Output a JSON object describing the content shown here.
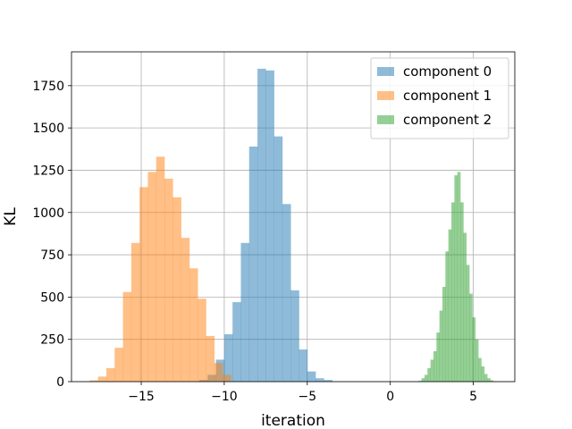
{
  "chart_data": {
    "type": "histogram",
    "xlabel": "iteration",
    "ylabel": "KL",
    "xlim": [
      -19.2,
      7.5
    ],
    "ylim": [
      0,
      1950
    ],
    "x_ticks": [
      -15,
      -10,
      -5,
      0,
      5
    ],
    "x_tick_labels": [
      "−15",
      "−10",
      "−5",
      "0",
      "5"
    ],
    "y_ticks": [
      0,
      250,
      500,
      750,
      1000,
      1250,
      1500,
      1750
    ],
    "y_tick_labels": [
      "0",
      "250",
      "500",
      "750",
      "1000",
      "1250",
      "1500",
      "1750"
    ],
    "grid": true,
    "legend_position": "top-right",
    "bar_alpha": 0.5,
    "series": [
      {
        "name": "component 0",
        "color": "#1f77b4",
        "bin_start": -11.5,
        "bin_width": 0.5,
        "counts": [
          10,
          40,
          130,
          280,
          470,
          820,
          1390,
          1850,
          1840,
          1450,
          1050,
          540,
          190,
          60,
          20,
          10
        ]
      },
      {
        "name": "component 1",
        "color": "#ff7f0e",
        "bin_start": -18.1,
        "bin_width": 0.5,
        "counts": [
          8,
          30,
          80,
          200,
          530,
          820,
          1150,
          1240,
          1330,
          1200,
          1090,
          850,
          670,
          490,
          270,
          110,
          40
        ]
      },
      {
        "name": "component 2",
        "color": "#2ca02c",
        "bin_start": 1.7,
        "bin_width": 0.18,
        "counts": [
          5,
          20,
          40,
          80,
          130,
          180,
          290,
          420,
          560,
          770,
          900,
          1060,
          1220,
          1240,
          1060,
          880,
          690,
          520,
          380,
          250,
          140,
          90,
          45,
          20,
          8
        ]
      }
    ]
  }
}
